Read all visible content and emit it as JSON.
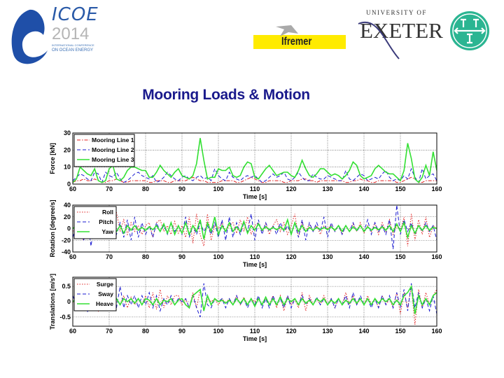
{
  "slide": {
    "title": "Mooring Loads & Motion",
    "logos": {
      "icoe": {
        "word": "ICOE",
        "year": "2014",
        "line1": "INTERNATIONAL CONFERENCE",
        "line2": "ON OCEAN ENERGY"
      },
      "ifremer": {
        "text": "Ifremer"
      },
      "exeter": {
        "line1": "UNIVERSITY OF",
        "line2": "EXETER"
      },
      "tti": {
        "text": "TTI"
      }
    },
    "title_color": "#1a1a8c"
  },
  "chart_data": [
    {
      "type": "line",
      "xlabel": "Time [s]",
      "ylabel": "Force [kN]",
      "xlim": [
        60,
        160
      ],
      "ylim": [
        0,
        30
      ],
      "xticks": [
        60,
        70,
        80,
        90,
        100,
        110,
        120,
        130,
        140,
        150,
        160
      ],
      "yticks": [
        0,
        10,
        20,
        30
      ],
      "grid": true,
      "legend": "top-left",
      "series": [
        {
          "name": "Mooring Line 1",
          "color": "#e02020",
          "style": "dashdot",
          "values": [
            1,
            2,
            2,
            3,
            2,
            2,
            3,
            2,
            1,
            1,
            2,
            2,
            3,
            2,
            1,
            1,
            2,
            2,
            2,
            2,
            2,
            1,
            1,
            2,
            2,
            2,
            1,
            1,
            2,
            2,
            2,
            2,
            3,
            4,
            3,
            2,
            2,
            1,
            1,
            1,
            1,
            2,
            2,
            2,
            2,
            1,
            1,
            2,
            3,
            4,
            3,
            2,
            1,
            1,
            2,
            2,
            2,
            2,
            1,
            1,
            2,
            2,
            2,
            3,
            3,
            2,
            2,
            1,
            2,
            2,
            2,
            2,
            2,
            2,
            2,
            1,
            1,
            2,
            2,
            3,
            2,
            2,
            1,
            1,
            2,
            2,
            2,
            2,
            2,
            1,
            1,
            2,
            3,
            4,
            3,
            1,
            1,
            2,
            2,
            2,
            2
          ]
        },
        {
          "name": "Mooring Line 2",
          "color": "#1a1ad0",
          "style": "dashed",
          "values": [
            2,
            4,
            6,
            5,
            3,
            2,
            7,
            6,
            1,
            7,
            5,
            4,
            7,
            3,
            1,
            2,
            4,
            6,
            7,
            5,
            4,
            3,
            5,
            1,
            2,
            4,
            7,
            5,
            3,
            2,
            4,
            5,
            3,
            2,
            4,
            5,
            3,
            4,
            2,
            9,
            5,
            3,
            2,
            7,
            4,
            3,
            2,
            4,
            5,
            4,
            5,
            3,
            1,
            2,
            4,
            6,
            4,
            5,
            7,
            3,
            2,
            4,
            7,
            4,
            2,
            2,
            6,
            4,
            3,
            3,
            5,
            4,
            3,
            2,
            2,
            8,
            3,
            2,
            4,
            6,
            5,
            2,
            3,
            4,
            3,
            6,
            8,
            4,
            2,
            3,
            2,
            5,
            3,
            9,
            4,
            1,
            9,
            3,
            5,
            6,
            2
          ]
        },
        {
          "name": "Mooring Line 3",
          "color": "#33e033",
          "style": "solid",
          "values": [
            1,
            3,
            10,
            8,
            6,
            5,
            9,
            2,
            1,
            2,
            9,
            11,
            3,
            2,
            4,
            8,
            10,
            10,
            9,
            8,
            8,
            4,
            4,
            7,
            11,
            8,
            6,
            4,
            7,
            9,
            5,
            4,
            3,
            5,
            12,
            27,
            14,
            3,
            4,
            4,
            9,
            8,
            8,
            10,
            5,
            4,
            5,
            10,
            13,
            12,
            4,
            3,
            6,
            9,
            11,
            8,
            5,
            6,
            7,
            7,
            5,
            4,
            8,
            14,
            9,
            5,
            4,
            6,
            9,
            9,
            7,
            5,
            6,
            5,
            3,
            5,
            8,
            13,
            11,
            5,
            3,
            4,
            5,
            9,
            11,
            9,
            7,
            6,
            6,
            4,
            2,
            8,
            24,
            15,
            3,
            1,
            4,
            11,
            5,
            19,
            8
          ]
        }
      ]
    },
    {
      "type": "line",
      "xlabel": "Time [s]",
      "ylabel": "Rotation [degree/s]",
      "xlim": [
        60,
        160
      ],
      "ylim": [
        -40,
        40
      ],
      "xticks": [
        60,
        70,
        80,
        90,
        100,
        110,
        120,
        130,
        140,
        150,
        160
      ],
      "yticks": [
        -40,
        -20,
        0,
        20,
        40
      ],
      "grid": true,
      "legend": "top-left",
      "series": [
        {
          "name": "Roll",
          "color": "#e02020",
          "style": "dotted",
          "values": [
            -5,
            5,
            -10,
            -20,
            10,
            0,
            -5,
            10,
            -15,
            15,
            -10,
            20,
            28,
            -5,
            15,
            -10,
            10,
            -5,
            5,
            -10,
            5,
            10,
            -15,
            10,
            15,
            -5,
            5,
            -10,
            12,
            -8,
            5,
            -15,
            20,
            -25,
            25,
            -10,
            -30,
            25,
            -20,
            5,
            0,
            10,
            -5,
            5,
            10,
            -8,
            15,
            -5,
            20,
            -10,
            5,
            10,
            -5,
            8,
            -10,
            5,
            15,
            -5,
            10,
            -10,
            5,
            25,
            -15,
            10,
            -5,
            8,
            -5,
            5,
            -10,
            5,
            0,
            5,
            -5,
            5,
            -10,
            5,
            -5,
            8,
            -5,
            10,
            -8,
            5,
            -5,
            10,
            -10,
            10,
            -5,
            15,
            -10,
            5,
            -5,
            20,
            -30,
            25,
            -20,
            15,
            -10,
            20,
            -15,
            5,
            0
          ]
        },
        {
          "name": "Pitch",
          "color": "#1a1ad0",
          "style": "dashed",
          "values": [
            -15,
            5,
            10,
            -20,
            15,
            -30,
            10,
            5,
            -15,
            20,
            -15,
            15,
            -10,
            10,
            -15,
            15,
            -20,
            20,
            -15,
            10,
            -10,
            5,
            -15,
            10,
            -5,
            5,
            -10,
            10,
            -5,
            5,
            -10,
            20,
            -15,
            5,
            -10,
            10,
            -5,
            5,
            -10,
            10,
            -15,
            15,
            -20,
            20,
            -15,
            10,
            -10,
            10,
            -5,
            25,
            -20,
            15,
            -10,
            10,
            -5,
            5,
            -10,
            10,
            -5,
            5,
            -10,
            10,
            -15,
            15,
            -20,
            10,
            -5,
            10,
            -5,
            20,
            -15,
            10,
            -5,
            5,
            -10,
            5,
            -5,
            10,
            -5,
            5,
            -5,
            15,
            -10,
            10,
            -5,
            5,
            -10,
            15,
            -35,
            40,
            -10,
            15,
            -5,
            10,
            -10,
            5,
            -5,
            10,
            -5,
            5,
            -20
          ]
        },
        {
          "name": "Yaw",
          "color": "#33e033",
          "style": "solid",
          "values": [
            0,
            5,
            -5,
            0,
            8,
            -5,
            5,
            -8,
            10,
            -10,
            5,
            0,
            -5,
            5,
            -8,
            5,
            -3,
            5,
            -3,
            2,
            -3,
            3,
            -2,
            5,
            -5,
            8,
            -8,
            10,
            -10,
            5,
            -8,
            10,
            -10,
            5,
            -5,
            15,
            -18,
            10,
            -5,
            20,
            -10,
            5,
            -5,
            10,
            -5,
            3,
            -5,
            12,
            -8,
            5,
            -3,
            8,
            -3,
            3,
            -2,
            2,
            -2,
            3,
            -3,
            15,
            -10,
            10,
            -5,
            5,
            -5,
            2,
            -3,
            2,
            -2,
            2,
            -2,
            3,
            -3,
            5,
            -5,
            5,
            -5,
            3,
            -3,
            5,
            -5,
            3,
            -3,
            2,
            -2,
            3,
            -3,
            5,
            -5,
            8,
            -5,
            10,
            -15,
            5,
            -8,
            5,
            -3,
            5,
            -3,
            2,
            0
          ]
        }
      ]
    },
    {
      "type": "line",
      "xlabel": "Time [s]",
      "ylabel": "Translations [m/s²]",
      "xlim": [
        60,
        160
      ],
      "ylim": [
        -0.8,
        0.8
      ],
      "xticks": [
        60,
        70,
        80,
        90,
        100,
        110,
        120,
        130,
        140,
        150,
        160
      ],
      "yticks": [
        -0.5,
        0,
        0.5
      ],
      "grid": true,
      "legend": "top-left",
      "series": [
        {
          "name": "Surge",
          "color": "#e02020",
          "style": "dotted",
          "values": [
            0,
            -0.2,
            0.1,
            -0.1,
            0.2,
            -0.2,
            0.1,
            -0.3,
            0.2,
            -0.1,
            0.3,
            -0.2,
            0.1,
            -0.1,
            0.2,
            -0.2,
            0.15,
            -0.1,
            0.1,
            -0.1,
            0.2,
            -0.2,
            0.3,
            -0.25,
            0.4,
            -0.2,
            0.2,
            -0.1,
            0.2,
            0.2,
            -0.1,
            0.1,
            -0.2,
            0.3,
            -0.2,
            0.4,
            -0.3,
            0.1,
            0,
            0.1,
            -0.1,
            0.1,
            -0.05,
            0.1,
            -0.1,
            0.2,
            -0.1,
            0.15,
            -0.1,
            0.1,
            0,
            0.1,
            -0.1,
            0.1,
            -0.1,
            0.2,
            -0.2,
            0.2,
            -0.3,
            0.2,
            -0.1,
            0.1,
            -0.2,
            0.3,
            -0.3,
            0.2,
            -0.1,
            0.1,
            -0.1,
            0.2,
            -0.1,
            0.1,
            -0.2,
            0.1,
            -0.1,
            0.3,
            -0.1,
            0.2,
            -0.1,
            0.1,
            -0.1,
            0.2,
            -0.1,
            0.1,
            -0.2,
            0.2,
            -0.1,
            0.1,
            -0.2,
            0.3,
            -0.4,
            0.3,
            -0.2,
            0.5,
            -0.75,
            0.4,
            -0.2,
            0.3,
            -0.1,
            0.2,
            0.4
          ]
        },
        {
          "name": "Sway",
          "color": "#1a1ad0",
          "style": "dashed",
          "values": [
            0.2,
            -0.1,
            -0.2,
            0.1,
            -0.35,
            0.1,
            -0.3,
            0.2,
            -0.2,
            0.1,
            -0.3,
            0.3,
            -0.2,
            0.5,
            -0.2,
            0.2,
            -0.1,
            0.2,
            -0.2,
            0.2,
            -0.1,
            0.3,
            -0.2,
            0.2,
            -0.3,
            0.1,
            -0.1,
            0.2,
            -0.1,
            0.1,
            0,
            0.1,
            -0.2,
            0.2,
            -0.2,
            -0.5,
            0.6,
            -0.1,
            -0.2,
            0.1,
            0,
            0.1,
            -0.2,
            0.1,
            -0.1,
            0.2,
            -0.1,
            0.1,
            -0.2,
            0.1,
            -0.1,
            0.2,
            -0.2,
            0.1,
            -0.2,
            0.2,
            -0.1,
            0.1,
            -0.2,
            0.2,
            -0.2,
            0.1,
            -0.1,
            0.2,
            -0.1,
            0.1,
            -0.1,
            0.15,
            -0.1,
            0.1,
            -0.1,
            0.1,
            -0.2,
            0.1,
            -0.1,
            0.2,
            -0.2,
            0.3,
            -0.1,
            0.2,
            -0.1,
            0.1,
            -0.2,
            0.1,
            -0.2,
            0.2,
            -0.1,
            0.2,
            -0.2,
            0.3,
            -0.2,
            0.4,
            -0.3,
            0.6,
            -0.2,
            0.3,
            -0.2,
            0.1,
            -0.3,
            0.2,
            -0.4
          ]
        },
        {
          "name": "Heave",
          "color": "#33e033",
          "style": "solid",
          "values": [
            0,
            0.1,
            -0.1,
            0.05,
            -0.1,
            0.1,
            -0.05,
            0.1,
            -0.1,
            0.1,
            0.3,
            -0.1,
            0.1,
            -0.1,
            0.1,
            0,
            0.1,
            -0.05,
            0.1,
            -0.1,
            0.1,
            0.05,
            -0.1,
            0.1,
            -0.1,
            0.05,
            0,
            0.1,
            -0.1,
            0.05,
            0.1,
            -0.1,
            -0.2,
            0.2,
            0.3,
            0.4,
            -0.3,
            0.2,
            -0.1,
            0.1,
            0,
            0.05,
            -0.05,
            0.05,
            -0.1,
            0.1,
            -0.05,
            0.1,
            -0.1,
            0.1,
            -0.15,
            0.1,
            -0.1,
            0.15,
            -0.1,
            0.1,
            -0.1,
            0.15,
            -0.1,
            0.1,
            0,
            0.1,
            -0.1,
            0.1,
            -0.05,
            0.05,
            -0.1,
            0.1,
            0,
            0.1,
            -0.1,
            0.05,
            -0.05,
            0.1,
            -0.1,
            0.05,
            -0.05,
            0.1,
            -0.05,
            0.1,
            -0.1,
            0.1,
            -0.1,
            0.1,
            -0.05,
            0.1,
            0,
            0.1,
            -0.1,
            0.05,
            -0.1,
            0.2,
            0.3,
            0.5,
            -0.4,
            0.2,
            -0.1,
            0.1,
            -0.1,
            0.2,
            0.3
          ]
        }
      ]
    }
  ]
}
